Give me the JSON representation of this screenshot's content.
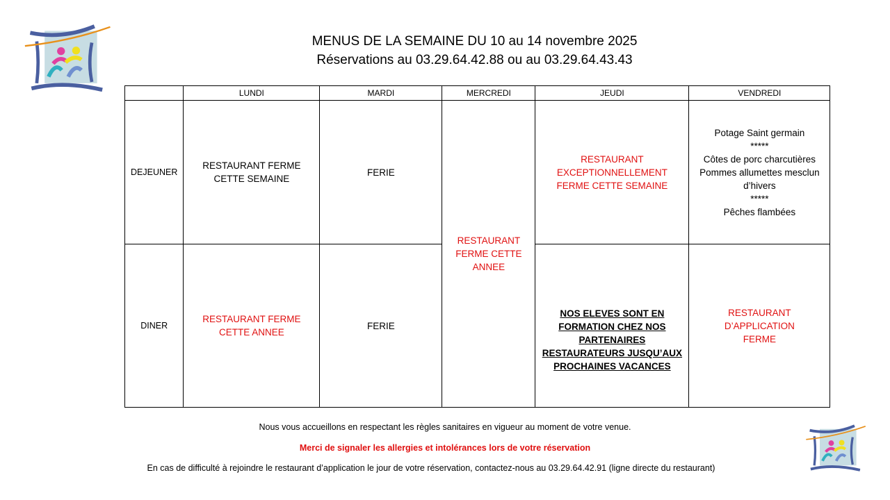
{
  "header": {
    "title": "MENUS DE LA SEMAINE DU 10 au 14 novembre 2025",
    "subtitle": "Réservations au 03.29.64.42.88 ou au 03.29.64.43.43"
  },
  "table": {
    "columns": [
      "",
      "LUNDI",
      "MARDI",
      "MERCREDI",
      "JEUDI",
      "VENDREDI"
    ],
    "rows": [
      {
        "label": "DEJEUNER",
        "lundi": "RESTAURANT FERME CETTE SEMAINE",
        "mardi": "FERIE",
        "jeudi": "RESTAURANT EXCEPTIONNELLEMENT FERME CETTE SEMAINE",
        "vendredi": [
          "Potage Saint germain",
          "*****",
          "Côtes de porc charcutières",
          "Pommes allumettes mesclun d’hivers",
          "*****",
          "Pêches flambées"
        ]
      },
      {
        "label": "DINER",
        "lundi": "RESTAURANT FERME CETTE ANNEE",
        "mardi": "FERIE",
        "jeudi": "NOS ELEVES SONT EN FORMATION CHEZ NOS PARTENAIRES RESTAURATEURS JUSQU’AUX PROCHAINES VACANCES",
        "vendredi": "RESTAURANT D’APPLICATION FERME"
      }
    ],
    "mercredi": "RESTAURANT FERME CETTE ANNEE"
  },
  "footer": {
    "line1": "Nous vous accueillons en respectant les règles sanitaires en vigueur au moment de votre venue.",
    "line2": "Merci de signaler les allergies et intolérances lors de votre réservation",
    "line3": "En cas de difficulté à rejoindre le restaurant d’application le jour de votre réservation, contactez-nous au 03.29.64.42.91 (ligne directe du restaurant)"
  },
  "colors": {
    "red": "#e01010"
  }
}
